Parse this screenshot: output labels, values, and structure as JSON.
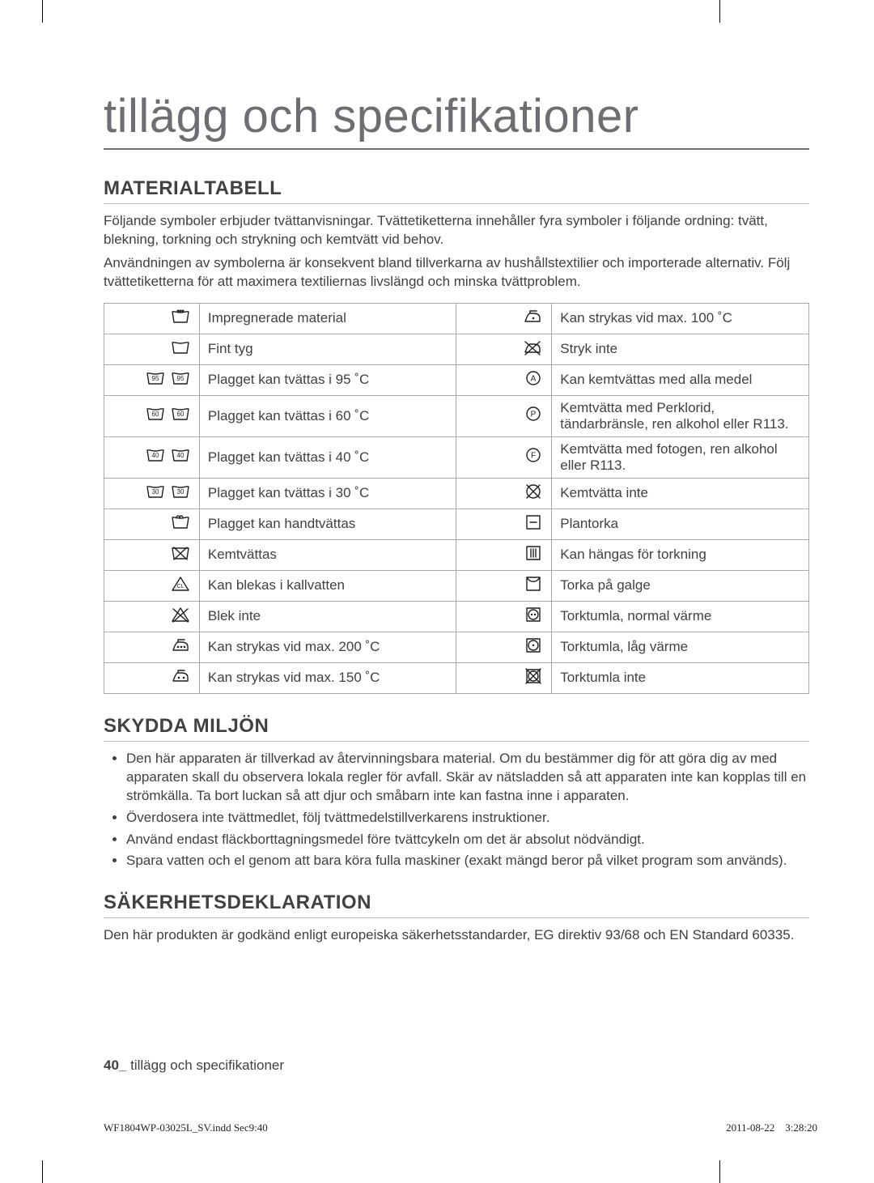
{
  "title": "tillägg och specifikationer",
  "section_material": "MATERIALTABELL",
  "intro_p1": "Följande symboler erbjuder tvättanvisningar. Tvättetiketterna innehåller fyra symboler i följande ordning: tvätt, blekning, torkning och strykning och kemtvätt vid behov.",
  "intro_p2": "Användningen av symbolerna är konsekvent bland tillverkarna av hushållstextilier och importerade alternativ. Följ tvättetiketterna för att maximera textiliernas livslängd och minska tvättproblem.",
  "rows_left": [
    {
      "icon": "tub-dots",
      "label": "Impregnerade material"
    },
    {
      "icon": "tub-plain",
      "label": "Fint tyg"
    },
    {
      "icon": "tub-95",
      "label": "Plagget kan tvättas i 95 ˚C"
    },
    {
      "icon": "tub-60",
      "label": "Plagget kan tvättas i 60 ˚C"
    },
    {
      "icon": "tub-40",
      "label": "Plagget kan tvättas i 40 ˚C"
    },
    {
      "icon": "tub-30",
      "label": "Plagget kan tvättas i 30 ˚C"
    },
    {
      "icon": "hand",
      "label": "Plagget kan handtvättas"
    },
    {
      "icon": "tub-x",
      "label": "Kemtvättas"
    },
    {
      "icon": "bleach",
      "label": "Kan blekas i kallvatten"
    },
    {
      "icon": "bleach-x",
      "label": "Blek inte"
    },
    {
      "icon": "iron-3",
      "label": "Kan strykas vid max. 200 ˚C"
    },
    {
      "icon": "iron-2",
      "label": "Kan strykas vid max. 150 ˚C"
    }
  ],
  "rows_right": [
    {
      "icon": "iron-1",
      "label": "Kan strykas vid max. 100 ˚C"
    },
    {
      "icon": "iron-x",
      "label": "Stryk inte"
    },
    {
      "icon": "circle-a",
      "label": "Kan kemtvättas med alla medel"
    },
    {
      "icon": "circle-p",
      "label": "Kemtvätta med Perklorid, tändarbränsle, ren alkohol eller R113."
    },
    {
      "icon": "circle-f",
      "label": "Kemtvätta med fotogen, ren alkohol eller R113."
    },
    {
      "icon": "circle-x",
      "label": "Kemtvätta inte"
    },
    {
      "icon": "flat",
      "label": "Plantorka"
    },
    {
      "icon": "drip",
      "label": "Kan hängas för torkning"
    },
    {
      "icon": "hang",
      "label": "Torka på galge"
    },
    {
      "icon": "tumble-2",
      "label": "Torktumla, normal värme"
    },
    {
      "icon": "tumble-1",
      "label": "Torktumla, låg värme"
    },
    {
      "icon": "tumble-x",
      "label": "Torktumla inte"
    }
  ],
  "section_env": "SKYDDA MILJÖN",
  "env_items": [
    "Den här apparaten är tillverkad av återvinningsbara material. Om du bestämmer dig för att göra dig av med apparaten skall du observera lokala regler för avfall. Skär av nätsladden så att apparaten inte kan kopplas till en strömkälla. Ta bort luckan så att djur och småbarn inte kan fastna inne i apparaten.",
    "Överdosera inte tvättmedlet, följ tvättmedelstillverkarens instruktioner.",
    "Använd endast fläckborttagningsmedel före tvättcykeln om det är absolut nödvändigt.",
    "Spara vatten och el genom att bara köra fulla maskiner (exakt mängd beror på vilket program som används)."
  ],
  "section_safety": "SÄKERHETSDEKLARATION",
  "safety_text": "Den här produkten är godkänd enligt europeiska säkerhetsstandarder, EG direktiv 93/68 och EN Standard 60335.",
  "page_footer_num": "40_",
  "page_footer_text": "tillägg och specifikationer",
  "print_file": "WF1804WP-03025L_SV.indd   Sec9:40",
  "print_date": "2011-08-22",
  "print_time": "3:28:20",
  "colors": {
    "title": "#6d6e71",
    "heading": "#414042",
    "text": "#414042",
    "border": "#a7a9ac",
    "hr": "#bcbec0"
  }
}
